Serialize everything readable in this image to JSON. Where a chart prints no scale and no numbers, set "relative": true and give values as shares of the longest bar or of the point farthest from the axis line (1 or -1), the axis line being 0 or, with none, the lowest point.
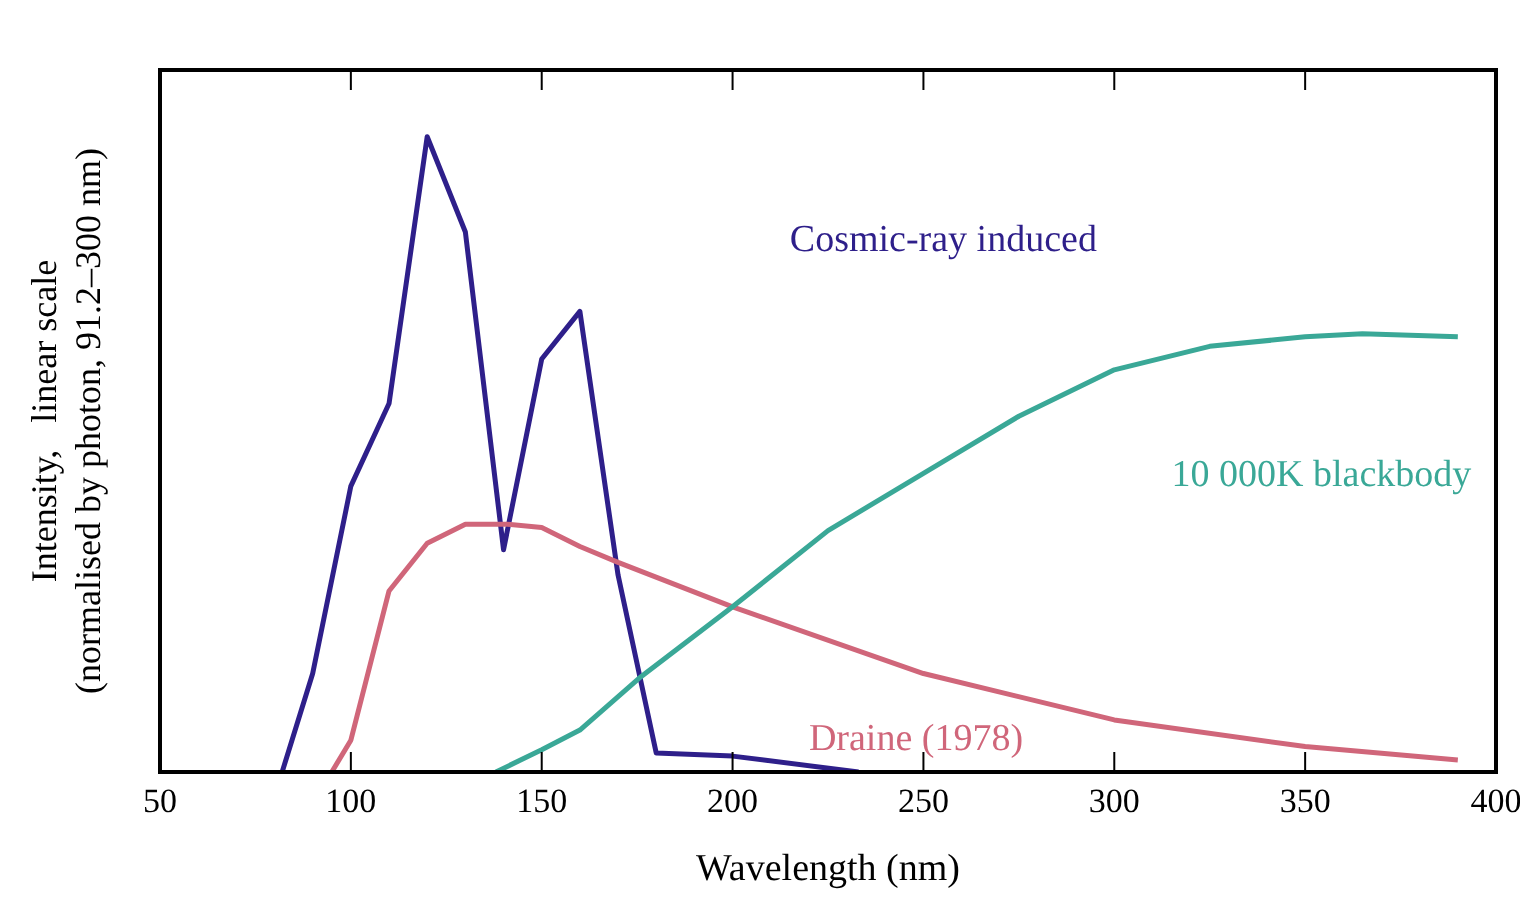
{
  "chart_data": {
    "type": "line",
    "relative": true,
    "xlabel": "Wavelength (nm)",
    "ylabel": "Intensity,   linear scale\n(normalised by photon, 91.2–300 nm)",
    "xlim": [
      50,
      400
    ],
    "xticks": [
      50,
      100,
      150,
      200,
      250,
      300,
      350,
      400
    ],
    "grid": false,
    "legend": false,
    "marker": "none",
    "line_style": "solid",
    "series": [
      {
        "name": "Cosmic-ray induced",
        "color": "#2e1f8a",
        "x": [
          82,
          90,
          100,
          110,
          120,
          130,
          140,
          150,
          160,
          170,
          180,
          200,
          233
        ],
        "values": [
          0,
          0.155,
          0.45,
          0.58,
          1,
          0.85,
          0.35,
          0.65,
          0.725,
          0.31,
          0.03,
          0.025,
          0
        ]
      },
      {
        "name": "Draine (1978)",
        "color": "#d0667a",
        "x": [
          95,
          100,
          110,
          120,
          130,
          141,
          150,
          160,
          170,
          200,
          250,
          300,
          350,
          390
        ],
        "values": [
          0,
          0.05,
          0.285,
          0.36,
          0.39,
          0.39,
          0.385,
          0.355,
          0.33,
          0.26,
          0.155,
          0.082,
          0.04,
          0.019
        ]
      },
      {
        "name": "10 000K blackbody",
        "color": "#3aa897",
        "x": [
          138,
          150,
          160,
          176,
          200,
          225,
          250,
          275,
          300,
          325,
          350,
          365,
          390
        ],
        "values": [
          0,
          0.035,
          0.066,
          0.15,
          0.26,
          0.38,
          0.47,
          0.56,
          0.633,
          0.67,
          0.685,
          0.69,
          0.685
        ]
      }
    ]
  }
}
